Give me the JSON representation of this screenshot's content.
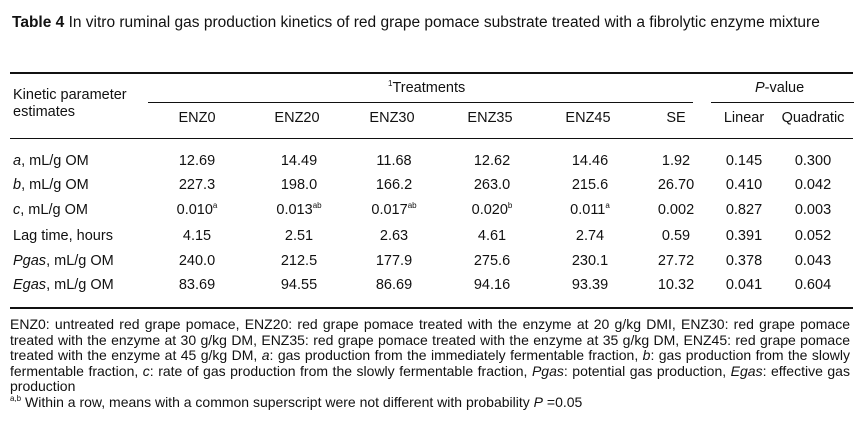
{
  "caption": {
    "label": "Table 4",
    "text": "In vitro ruminal gas production kinetics of red grape pomace substrate treated with a fibrolytic enzyme mixture"
  },
  "header": {
    "param_line1": "Kinetic parameter",
    "param_line2": "estimates",
    "treatments_sup": "1",
    "treatments": "Treatments",
    "pvalue_p": "P",
    "pvalue_rest": "-value",
    "columns": [
      "ENZ0",
      "ENZ20",
      "ENZ30",
      "ENZ35",
      "ENZ45",
      "SE",
      "Linear",
      "Quadratic"
    ]
  },
  "rows": [
    {
      "label_italic": "a",
      "label_rest": ", mL/g OM",
      "values": [
        "12.69",
        "14.49",
        "11.68",
        "12.62",
        "14.46",
        "1.92",
        "0.145",
        "0.300"
      ],
      "sups": [
        "",
        "",
        "",
        "",
        "",
        "",
        "",
        ""
      ]
    },
    {
      "label_italic": "b",
      "label_rest": ", mL/g OM",
      "values": [
        "227.3",
        "198.0",
        "166.2",
        "263.0",
        "215.6",
        "26.70",
        "0.410",
        "0.042"
      ],
      "sups": [
        "",
        "",
        "",
        "",
        "",
        "",
        "",
        ""
      ]
    },
    {
      "label_italic": "c",
      "label_rest": ", mL/g OM",
      "values": [
        "0.010",
        "0.013",
        "0.017",
        "0.020",
        "0.011",
        "0.002",
        "0.827",
        "0.003"
      ],
      "sups": [
        "a",
        "ab",
        "ab",
        "b",
        "a",
        "",
        "",
        ""
      ]
    },
    {
      "label_italic": "",
      "label_rest": "Lag time, hours",
      "values": [
        "4.15",
        "2.51",
        "2.63",
        "4.61",
        "2.74",
        "0.59",
        "0.391",
        "0.052"
      ],
      "sups": [
        "",
        "",
        "",
        "",
        "",
        "",
        "",
        ""
      ]
    },
    {
      "label_italic": "Pgas",
      "label_rest": ", mL/g OM",
      "values": [
        "240.0",
        "212.5",
        "177.9",
        "275.6",
        "230.1",
        "27.72",
        "0.378",
        "0.043"
      ],
      "sups": [
        "",
        "",
        "",
        "",
        "",
        "",
        "",
        ""
      ]
    },
    {
      "label_italic": "Egas",
      "label_rest": ", mL/g OM",
      "values": [
        "83.69",
        "94.55",
        "86.69",
        "94.16",
        "93.39",
        "10.32",
        "0.041",
        "0.604"
      ],
      "sups": [
        "",
        "",
        "",
        "",
        "",
        "",
        "",
        ""
      ]
    }
  ],
  "notes": {
    "p1_a": "ENZ0: untreated red grape pomace, ENZ20: red grape pomace treated with the enzyme at 20 g/kg DMI, ENZ30: red grape pomace treated with the enzyme at 30 g/kg DM, ENZ35: red grape pomace treated with the enzyme at 35 g/kg DM, ENZ45: red grape pomace treated with the enzyme at 45 g/kg DM, ",
    "p1_a_it": "a",
    "p1_b": ": gas production from the immediately fermentable fraction, ",
    "p1_b_it": "b",
    "p1_c": ": gas production from the slowly fermentable fraction, ",
    "p1_c_it": "c",
    "p1_d": ": rate of gas production from the slowly fermentable fraction, ",
    "p1_pgas_it": "Pgas",
    "p1_e": ": potential gas production, ",
    "p1_egas_it": "Egas",
    "p1_f": ": effective gas production",
    "sig_sup": "a,b",
    "sig_text": " Within a row, means with a common superscript were not different with probability ",
    "sig_p": "P",
    "sig_end": " =0.05"
  }
}
